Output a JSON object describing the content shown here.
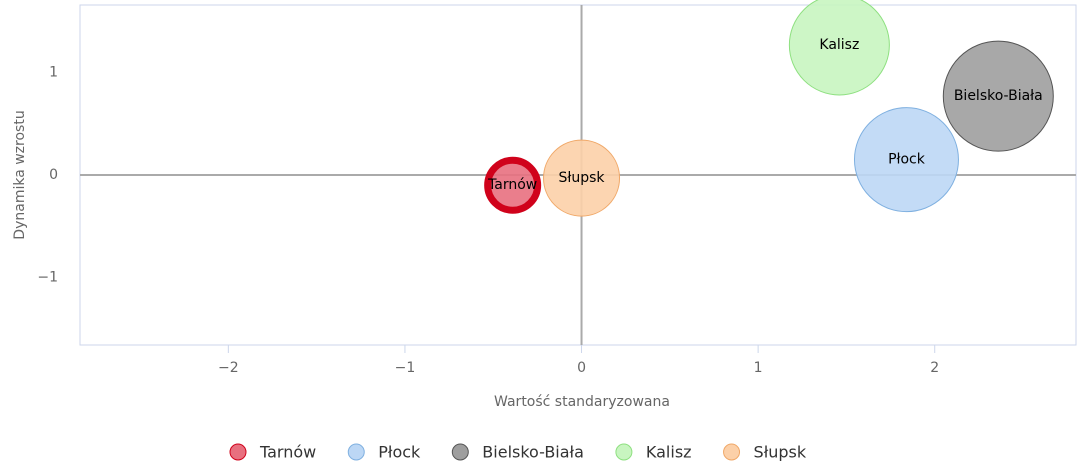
{
  "chart_data": {
    "type": "bubble",
    "xlabel": "Wartość standaryzowana",
    "ylabel": "Dynamika wzrostu",
    "xlim": [
      -2.84,
      2.8
    ],
    "ylim": [
      -1.66,
      1.66
    ],
    "xticks": [
      {
        "value": -2,
        "label": "−2"
      },
      {
        "value": -1,
        "label": "−1"
      },
      0,
      1,
      2
    ],
    "yticks": [
      {
        "value": -1,
        "label": "−1"
      },
      0,
      1
    ],
    "size_max": 55,
    "legend": "bottom",
    "series": [
      {
        "name": "Tarnów",
        "color": "#e8707f",
        "border_color": "#d0021b",
        "border_width": 7,
        "x": [
          -0.39
        ],
        "values": [
          -0.1
        ],
        "sizes": [
          25
        ]
      },
      {
        "name": "Płock",
        "color": "#bcd7f5",
        "border_color": "#7fb0e0",
        "border_width": 1,
        "x": [
          1.84
        ],
        "values": [
          0.15
        ],
        "sizes": [
          52
        ]
      },
      {
        "name": "Bielsko-Biała",
        "color": "#9e9e9e",
        "border_color": "#555555",
        "border_width": 1,
        "x": [
          2.36
        ],
        "values": [
          0.77
        ],
        "sizes": [
          55
        ]
      },
      {
        "name": "Kalisz",
        "color": "#c8f5c0",
        "border_color": "#8ee080",
        "border_width": 1,
        "x": [
          1.46
        ],
        "values": [
          1.27
        ],
        "sizes": [
          50
        ]
      },
      {
        "name": "Słupsk",
        "color": "#fcd0a8",
        "border_color": "#f0a868",
        "border_width": 1,
        "x": [
          0
        ],
        "values": [
          -0.03
        ],
        "sizes": [
          38
        ]
      }
    ]
  }
}
